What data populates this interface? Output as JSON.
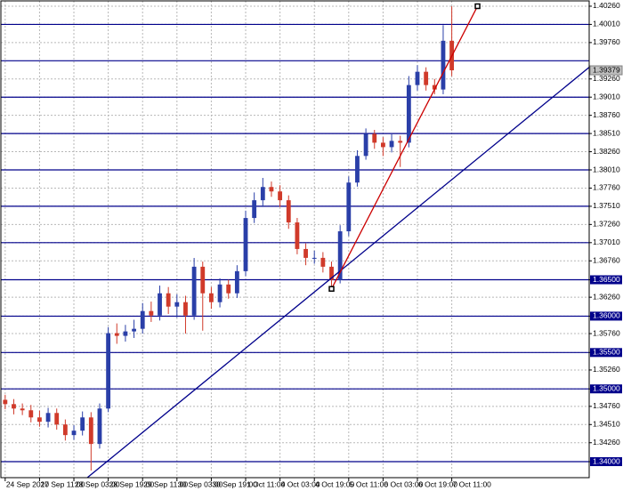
{
  "chart_data": {
    "type": "candlestick",
    "xlim": [
      -0.5,
      68
    ],
    "ylim": [
      1.3378,
      1.40333
    ],
    "grid": true,
    "bull_color": "#2a3fa8",
    "bear_color": "#d03a2a",
    "xticks": [
      {
        "value": 0,
        "label": "24 Sep 2010"
      },
      {
        "value": 4,
        "label": "27 Sep 11:00"
      },
      {
        "value": 8,
        "label": "28 Sep 03:00"
      },
      {
        "value": 12,
        "label": "28 Sep 19:00"
      },
      {
        "value": 16,
        "label": "29 Sep 11:00"
      },
      {
        "value": 20,
        "label": "30 Sep 03:00"
      },
      {
        "value": 24,
        "label": "30 Sep 19:00"
      },
      {
        "value": 28,
        "label": "1 Oct 11:00"
      },
      {
        "value": 32,
        "label": "4 Oct 03:00"
      },
      {
        "value": 36,
        "label": "4 Oct 19:00"
      },
      {
        "value": 40,
        "label": "5 Oct 11:00"
      },
      {
        "value": 44,
        "label": "6 Oct 03:00"
      },
      {
        "value": 48,
        "label": "6 Oct 19:00"
      },
      {
        "value": 52,
        "label": "7 Oct 11:00"
      }
    ],
    "yticks": [
      {
        "value": 1.4026,
        "label": "1.40260"
      },
      {
        "value": 1.4001,
        "label": "1.40010"
      },
      {
        "value": 1.3976,
        "label": "1.39760"
      },
      {
        "value": 1.3926,
        "label": "1.39260"
      },
      {
        "value": 1.3901,
        "label": "1.39010"
      },
      {
        "value": 1.3876,
        "label": "1.38760"
      },
      {
        "value": 1.3851,
        "label": "1.38510"
      },
      {
        "value": 1.3826,
        "label": "1.38260"
      },
      {
        "value": 1.3801,
        "label": "1.38010"
      },
      {
        "value": 1.3776,
        "label": "1.37760"
      },
      {
        "value": 1.3751,
        "label": "1.37510"
      },
      {
        "value": 1.3726,
        "label": "1.37260"
      },
      {
        "value": 1.3701,
        "label": "1.37010"
      },
      {
        "value": 1.3676,
        "label": "1.36760"
      },
      {
        "value": 1.365,
        "label": "1.36500"
      },
      {
        "value": 1.3626,
        "label": "1.36260"
      },
      {
        "value": 1.36,
        "label": "1.36000"
      },
      {
        "value": 1.3576,
        "label": "1.35760"
      },
      {
        "value": 1.355,
        "label": "1.35500"
      },
      {
        "value": 1.3526,
        "label": "1.35260"
      },
      {
        "value": 1.35,
        "label": "1.35000"
      },
      {
        "value": 1.3476,
        "label": "1.34760"
      },
      {
        "value": 1.3451,
        "label": "1.34510"
      },
      {
        "value": 1.3426,
        "label": "1.34260"
      },
      {
        "value": 1.34,
        "label": "1.34000"
      }
    ],
    "last_price": {
      "value": 1.39379,
      "label": "1.39379"
    },
    "hlines": [
      {
        "value": 1.4001
      },
      {
        "value": 1.3951
      },
      {
        "value": 1.3901
      },
      {
        "value": 1.3851
      },
      {
        "value": 1.3801
      },
      {
        "value": 1.3751
      },
      {
        "value": 1.3701
      },
      {
        "value": 1.365,
        "labeled": true
      },
      {
        "value": 1.36,
        "labeled": true
      },
      {
        "value": 1.355,
        "labeled": true
      },
      {
        "value": 1.35,
        "labeled": true
      },
      {
        "value": 1.34,
        "labeled": true
      }
    ],
    "hline_color": "#00008b",
    "trendlines": [
      {
        "color": "#00008b",
        "from": [
          9.56,
          1.3378
        ],
        "to": [
          68,
          1.3942
        ]
      },
      {
        "color": "#cc0000",
        "from": [
          38,
          1.36375
        ],
        "to": [
          55,
          1.4026
        ],
        "markers": true
      }
    ],
    "open": [
      1.3485,
      1.34791,
      1.3473,
      1.34706,
      1.34608,
      1.34548,
      1.34669,
      1.34511,
      1.34365,
      1.34426,
      1.34608,
      1.34243,
      1.3473,
      1.35766,
      1.35729,
      1.3579,
      1.35826,
      1.3607,
      1.36009,
      1.36314,
      1.36131,
      1.36192,
      1.36009,
      1.36679,
      1.36314,
      1.36192,
      1.36435,
      1.36314,
      1.36618,
      1.37349,
      1.37593,
      1.37775,
      1.37714,
      1.37593,
      1.37288,
      1.36923,
      1.36801,
      1.36801,
      1.36679,
      1.36496,
      1.37166,
      1.37836,
      1.38202,
      1.38506,
      1.38384,
      1.38323,
      1.38409,
      1.38384,
      1.39176,
      1.39359,
      1.39176,
      1.39115,
      1.39785
    ],
    "high": [
      1.3492,
      1.3486,
      1.348,
      1.3478,
      1.347,
      1.3474,
      1.3473,
      1.3458,
      1.345,
      1.3469,
      1.3468,
      1.348,
      1.3585,
      1.359,
      1.3588,
      1.3595,
      1.3618,
      1.362,
      1.3642,
      1.364,
      1.363,
      1.3628,
      1.368,
      1.3675,
      1.364,
      1.3652,
      1.365,
      1.367,
      1.3745,
      1.377,
      1.379,
      1.3785,
      1.378,
      1.3766,
      1.3735,
      1.37,
      1.369,
      1.3688,
      1.3675,
      1.3725,
      1.3792,
      1.3828,
      1.3858,
      1.3856,
      1.3846,
      1.385,
      1.3848,
      1.393,
      1.3945,
      1.3942,
      1.3926,
      1.4,
      1.4026
    ],
    "low": [
      1.3472,
      1.3465,
      1.3464,
      1.3454,
      1.3448,
      1.3447,
      1.3444,
      1.3429,
      1.343,
      1.3436,
      1.33878,
      1.3418,
      1.3468,
      1.3562,
      1.3565,
      1.357,
      1.3576,
      1.3592,
      1.3594,
      1.3603,
      1.3598,
      1.3576,
      1.3595,
      1.358,
      1.361,
      1.3612,
      1.3624,
      1.3625,
      1.3655,
      1.3728,
      1.375,
      1.3764,
      1.375,
      1.372,
      1.3685,
      1.367,
      1.3672,
      1.366,
      1.36375,
      1.3645,
      1.371,
      1.3778,
      1.3815,
      1.383,
      1.382,
      1.3825,
      1.3805,
      1.3832,
      1.391,
      1.391,
      1.3905,
      1.3905,
      1.39298
    ],
    "close": [
      1.34791,
      1.3473,
      1.34706,
      1.34608,
      1.34548,
      1.34669,
      1.34511,
      1.34365,
      1.34426,
      1.34608,
      1.34243,
      1.3473,
      1.35766,
      1.35729,
      1.3579,
      1.35826,
      1.3607,
      1.36009,
      1.36314,
      1.36131,
      1.36192,
      1.36009,
      1.36679,
      1.36314,
      1.36192,
      1.36435,
      1.36314,
      1.36618,
      1.37349,
      1.37593,
      1.37775,
      1.37714,
      1.37593,
      1.37288,
      1.36923,
      1.36801,
      1.36801,
      1.36679,
      1.36496,
      1.37166,
      1.37836,
      1.38202,
      1.38506,
      1.38384,
      1.38323,
      1.38409,
      1.38384,
      1.39176,
      1.39359,
      1.39176,
      1.39115,
      1.39785,
      1.39379
    ]
  }
}
